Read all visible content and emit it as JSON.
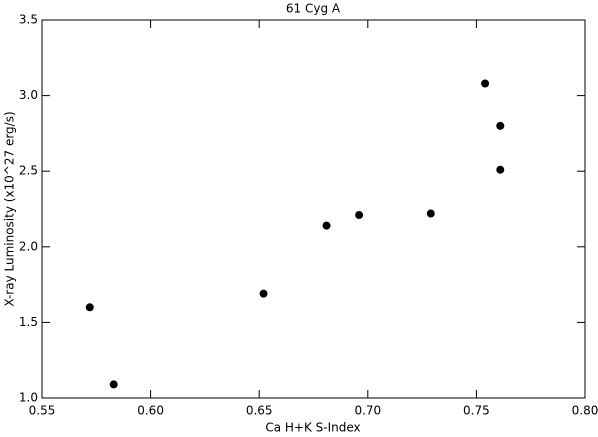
{
  "chart_data": {
    "type": "scatter",
    "title": "61 Cyg A",
    "x_label": "Ca H+K S-Index",
    "y_label": "X-ray Luminosity (x10^27 erg/s)",
    "x": [
      0.572,
      0.583,
      0.652,
      0.681,
      0.696,
      0.729,
      0.754,
      0.761,
      0.761
    ],
    "values": [
      1.6,
      1.09,
      1.69,
      2.14,
      2.21,
      2.22,
      3.08,
      2.8,
      2.51
    ],
    "color": "#000000",
    "xlim": [
      0.55,
      0.8
    ],
    "xticks": [
      0.55,
      {
        "value": 0.6,
        "label": "0.60"
      },
      0.65,
      {
        "value": 0.7,
        "label": "0.70"
      },
      0.75,
      {
        "value": 0.8,
        "label": "0.80"
      }
    ],
    "ylim": [
      1.0,
      3.5
    ],
    "yticks": [
      {
        "value": 1.0,
        "label": "1.0"
      },
      1.5,
      {
        "value": 2.0,
        "label": "2.0"
      },
      2.5,
      {
        "value": 3.0,
        "label": "3.0"
      },
      3.5
    ],
    "grid": false
  }
}
